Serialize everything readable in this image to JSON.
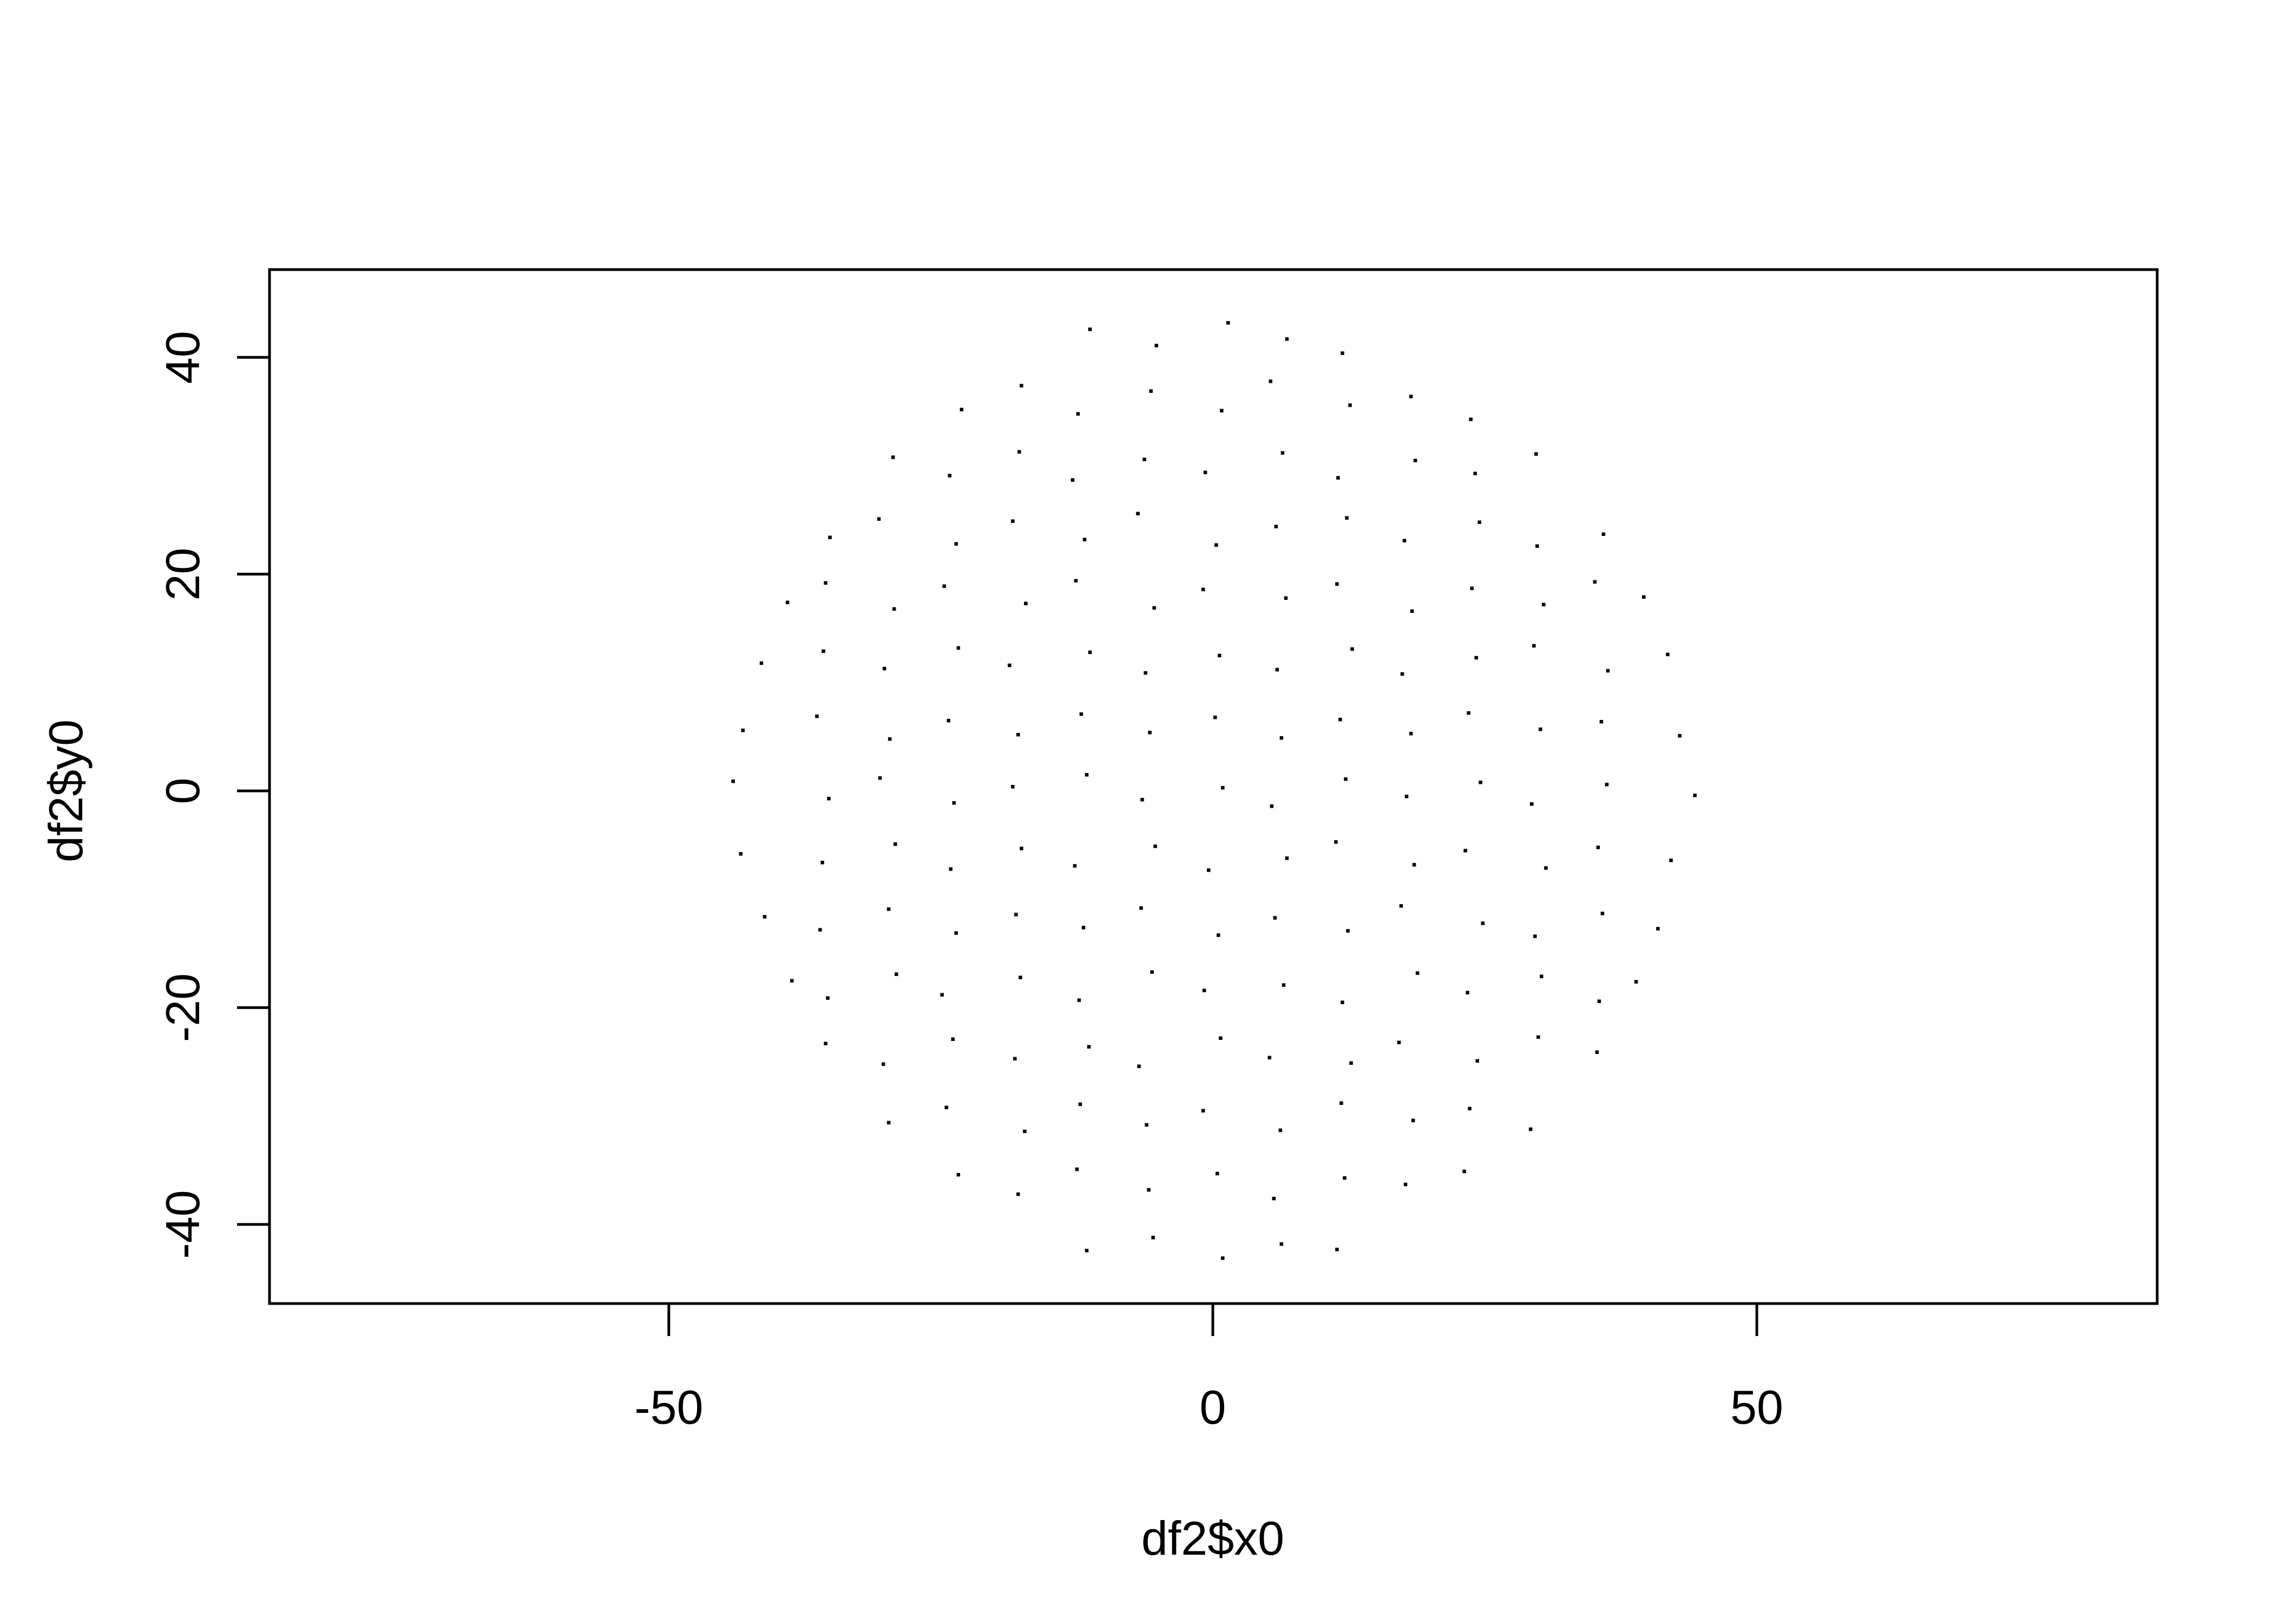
{
  "chart_data": {
    "type": "scatter",
    "title": "",
    "xlabel": "df2$x0",
    "ylabel": "df2$y0",
    "xlim": [
      -86.7,
      86.8
    ],
    "ylim": [
      -47.3,
      48.1
    ],
    "x_ticks": [
      -50,
      0,
      50
    ],
    "x_tick_labels": [
      "-50",
      "0",
      "50"
    ],
    "y_ticks": [
      -40,
      -20,
      0,
      20,
      40
    ],
    "y_tick_labels": [
      "-40",
      "-20",
      "0",
      "20",
      "40"
    ],
    "grid": false,
    "legend": "none",
    "point_color": "#000000",
    "point_marker": ".",
    "points": [
      [
        -11.3,
        42.6
      ],
      [
        -5.2,
        41.1
      ],
      [
        1.4,
        43.2
      ],
      [
        6.8,
        41.7
      ],
      [
        11.9,
        40.4
      ],
      [
        -23.1,
        35.2
      ],
      [
        -17.6,
        37.4
      ],
      [
        -12.4,
        34.8
      ],
      [
        -5.7,
        36.9
      ],
      [
        0.8,
        35.1
      ],
      [
        5.3,
        37.8
      ],
      [
        12.6,
        35.6
      ],
      [
        18.2,
        36.4
      ],
      [
        23.7,
        34.3
      ],
      [
        -29.4,
        30.8
      ],
      [
        -24.2,
        29.1
      ],
      [
        -17.8,
        31.3
      ],
      [
        -12.9,
        28.7
      ],
      [
        -6.3,
        30.6
      ],
      [
        -0.7,
        29.4
      ],
      [
        6.4,
        31.2
      ],
      [
        11.5,
        28.9
      ],
      [
        18.6,
        30.5
      ],
      [
        24.1,
        29.3
      ],
      [
        29.7,
        31.1
      ],
      [
        -35.2,
        23.4
      ],
      [
        -30.7,
        25.1
      ],
      [
        -23.6,
        22.8
      ],
      [
        -18.4,
        24.9
      ],
      [
        -11.8,
        23.2
      ],
      [
        -6.9,
        25.6
      ],
      [
        0.3,
        22.7
      ],
      [
        5.8,
        24.4
      ],
      [
        12.3,
        25.2
      ],
      [
        17.6,
        23.1
      ],
      [
        24.5,
        24.8
      ],
      [
        29.8,
        22.6
      ],
      [
        35.9,
        23.7
      ],
      [
        -39.1,
        17.4
      ],
      [
        -35.6,
        19.2
      ],
      [
        -29.3,
        16.8
      ],
      [
        -24.7,
        18.9
      ],
      [
        -17.2,
        17.3
      ],
      [
        -12.6,
        19.4
      ],
      [
        -5.4,
        16.9
      ],
      [
        -0.9,
        18.6
      ],
      [
        6.7,
        17.8
      ],
      [
        11.4,
        19.1
      ],
      [
        18.3,
        16.6
      ],
      [
        23.8,
        18.7
      ],
      [
        30.4,
        17.2
      ],
      [
        35.1,
        19.3
      ],
      [
        39.6,
        17.9
      ],
      [
        -41.5,
        11.8
      ],
      [
        -35.8,
        12.9
      ],
      [
        -30.2,
        11.3
      ],
      [
        -23.4,
        13.2
      ],
      [
        -18.7,
        11.6
      ],
      [
        -11.3,
        12.8
      ],
      [
        -6.2,
        10.9
      ],
      [
        0.6,
        12.5
      ],
      [
        5.9,
        11.2
      ],
      [
        12.8,
        13.1
      ],
      [
        17.4,
        10.8
      ],
      [
        24.2,
        12.3
      ],
      [
        29.5,
        13.4
      ],
      [
        36.3,
        11.1
      ],
      [
        41.8,
        12.6
      ],
      [
        -43.2,
        5.6
      ],
      [
        -36.4,
        6.9
      ],
      [
        -29.7,
        4.8
      ],
      [
        -24.3,
        6.5
      ],
      [
        -17.9,
        5.2
      ],
      [
        -12.1,
        7.1
      ],
      [
        -5.8,
        5.4
      ],
      [
        0.2,
        6.8
      ],
      [
        6.3,
        4.9
      ],
      [
        11.7,
        6.6
      ],
      [
        18.2,
        5.3
      ],
      [
        23.5,
        7.2
      ],
      [
        30.1,
        5.7
      ],
      [
        35.7,
        6.4
      ],
      [
        42.9,
        5.1
      ],
      [
        -44.1,
        0.9
      ],
      [
        -35.3,
        -0.7
      ],
      [
        -30.6,
        1.2
      ],
      [
        -23.8,
        -1.1
      ],
      [
        -18.4,
        0.4
      ],
      [
        -11.6,
        1.5
      ],
      [
        -6.5,
        -0.8
      ],
      [
        0.9,
        0.3
      ],
      [
        5.4,
        -1.4
      ],
      [
        12.2,
        1.1
      ],
      [
        17.8,
        -0.5
      ],
      [
        24.6,
        0.8
      ],
      [
        29.3,
        -1.2
      ],
      [
        36.2,
        0.6
      ],
      [
        44.3,
        -0.4
      ],
      [
        -43.4,
        -5.8
      ],
      [
        -35.9,
        -6.6
      ],
      [
        -29.2,
        -4.9
      ],
      [
        -24.1,
        -7.2
      ],
      [
        -17.6,
        -5.3
      ],
      [
        -12.7,
        -6.9
      ],
      [
        -5.3,
        -5.1
      ],
      [
        -0.4,
        -7.3
      ],
      [
        6.8,
        -6.2
      ],
      [
        11.3,
        -4.7
      ],
      [
        18.5,
        -6.8
      ],
      [
        23.2,
        -5.5
      ],
      [
        30.6,
        -7.1
      ],
      [
        35.4,
        -5.2
      ],
      [
        42.1,
        -6.4
      ],
      [
        -41.2,
        -11.6
      ],
      [
        -36.1,
        -12.8
      ],
      [
        -29.8,
        -10.9
      ],
      [
        -23.6,
        -13.1
      ],
      [
        -18.1,
        -11.4
      ],
      [
        -11.9,
        -12.6
      ],
      [
        -6.6,
        -10.8
      ],
      [
        0.5,
        -13.3
      ],
      [
        5.7,
        -11.7
      ],
      [
        12.4,
        -12.9
      ],
      [
        17.3,
        -10.6
      ],
      [
        24.8,
        -12.2
      ],
      [
        29.6,
        -13.4
      ],
      [
        35.8,
        -11.3
      ],
      [
        40.9,
        -12.7
      ],
      [
        -38.7,
        -17.5
      ],
      [
        -35.4,
        -19.1
      ],
      [
        -29.1,
        -16.9
      ],
      [
        -24.9,
        -18.8
      ],
      [
        -17.7,
        -17.2
      ],
      [
        -12.3,
        -19.3
      ],
      [
        -5.6,
        -16.7
      ],
      [
        -0.8,
        -18.4
      ],
      [
        6.5,
        -17.9
      ],
      [
        11.9,
        -19.5
      ],
      [
        18.8,
        -16.8
      ],
      [
        23.4,
        -18.6
      ],
      [
        30.2,
        -17.1
      ],
      [
        35.5,
        -19.4
      ],
      [
        38.9,
        -17.6
      ],
      [
        -35.6,
        -23.3
      ],
      [
        -30.3,
        -25.2
      ],
      [
        -23.9,
        -22.9
      ],
      [
        -18.2,
        -24.7
      ],
      [
        -11.4,
        -23.6
      ],
      [
        -6.8,
        -25.4
      ],
      [
        0.7,
        -22.8
      ],
      [
        5.2,
        -24.6
      ],
      [
        12.7,
        -25.1
      ],
      [
        17.1,
        -23.2
      ],
      [
        24.3,
        -24.9
      ],
      [
        29.9,
        -22.7
      ],
      [
        35.3,
        -24.1
      ],
      [
        -29.8,
        -30.6
      ],
      [
        -24.5,
        -29.2
      ],
      [
        -17.3,
        -31.4
      ],
      [
        -12.2,
        -28.9
      ],
      [
        -6.1,
        -30.8
      ],
      [
        -0.9,
        -29.5
      ],
      [
        6.2,
        -31.3
      ],
      [
        11.8,
        -28.8
      ],
      [
        18.4,
        -30.4
      ],
      [
        23.6,
        -29.3
      ],
      [
        29.2,
        -31.2
      ],
      [
        -23.4,
        -35.4
      ],
      [
        -17.9,
        -37.2
      ],
      [
        -12.5,
        -34.9
      ],
      [
        -5.9,
        -36.8
      ],
      [
        0.4,
        -35.3
      ],
      [
        5.6,
        -37.6
      ],
      [
        12.1,
        -35.7
      ],
      [
        17.7,
        -36.3
      ],
      [
        23.1,
        -35.1
      ],
      [
        -11.6,
        -42.4
      ],
      [
        -5.5,
        -41.2
      ],
      [
        0.9,
        -43.1
      ],
      [
        6.3,
        -41.8
      ],
      [
        11.4,
        -42.3
      ]
    ]
  }
}
